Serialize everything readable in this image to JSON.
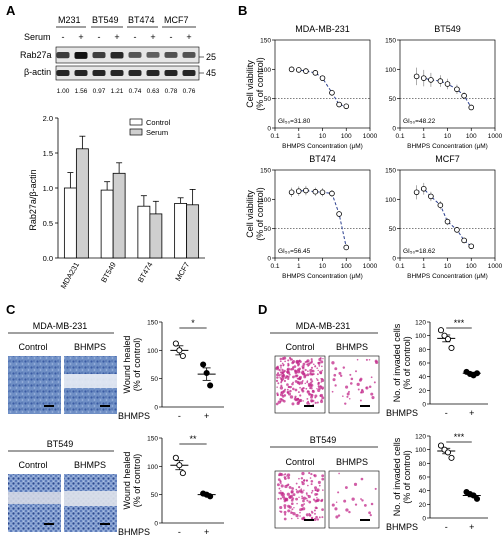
{
  "panels": {
    "A": "A",
    "B": "B",
    "C": "C",
    "D": "D"
  },
  "panelA": {
    "cell_lines": [
      "M231",
      "BT549",
      "BT474",
      "MCF7"
    ],
    "serum_label": "Serum",
    "serum_signs": [
      "-",
      "+",
      "-",
      "+",
      "-",
      "+",
      "-",
      "+"
    ],
    "blot_rows": [
      "Rab27a",
      "β-actin"
    ],
    "kda": [
      "25",
      "45"
    ],
    "ratios": [
      "1.00",
      "1.56",
      "0.97",
      "1.21",
      "0.74",
      "0.63",
      "0.78",
      "0.76"
    ],
    "ylabel": "Rab27a/β-actin",
    "legend": [
      "Control",
      "Serum"
    ]
  },
  "chart_data": [
    {
      "type": "bar",
      "panel": "A",
      "categories": [
        "MDA231",
        "BT549",
        "BT474",
        "MCF7"
      ],
      "series": [
        {
          "name": "Control",
          "values": [
            1.0,
            0.97,
            0.74,
            0.78
          ],
          "errors": [
            0.22,
            0.12,
            0.15,
            0.08
          ]
        },
        {
          "name": "Serum",
          "values": [
            1.56,
            1.21,
            0.63,
            0.76
          ],
          "errors": [
            0.18,
            0.15,
            0.18,
            0.22
          ]
        }
      ],
      "ylabel": "Rab27a/β-actin",
      "ylim": [
        0,
        2.0
      ],
      "yticks": [
        "0.0",
        "0.5",
        "1.0",
        "1.5",
        "2.0"
      ]
    },
    {
      "type": "scatter",
      "panel": "B",
      "title": "MDA-MB-231",
      "annotation": "GI₅₀=31.80",
      "x": [
        0.5,
        1,
        2,
        5,
        10,
        25,
        50,
        100
      ],
      "y": [
        100,
        99,
        97,
        94,
        85,
        60,
        40,
        37
      ],
      "errors": [
        2,
        2,
        2,
        3,
        4,
        5,
        4,
        3
      ],
      "xlabel": "BHMPS Concentration (μM)",
      "ylabel": "Cell viability (% of control)",
      "xlim": [
        0.1,
        1000
      ],
      "ylim": [
        0,
        150
      ],
      "xscale": "log",
      "xticks": [
        "0.1",
        "1",
        "10",
        "100",
        "1000"
      ],
      "yticks": [
        "0",
        "50",
        "100",
        "150"
      ]
    },
    {
      "type": "scatter",
      "panel": "B",
      "title": "BT549",
      "annotation": "GI₅₀=48.22",
      "x": [
        0.5,
        1,
        2,
        5,
        10,
        25,
        50,
        100
      ],
      "y": [
        88,
        85,
        82,
        80,
        75,
        66,
        55,
        35
      ],
      "errors": [
        15,
        14,
        12,
        10,
        9,
        8,
        6,
        4
      ],
      "xlabel": "BHMPS Concentration (μM)",
      "ylabel": "",
      "xlim": [
        0.1,
        1000
      ],
      "ylim": [
        0,
        150
      ],
      "xscale": "log",
      "xticks": [
        "0.1",
        "1",
        "10",
        "100",
        "1000"
      ],
      "yticks": [
        "0",
        "50",
        "100",
        "150"
      ]
    },
    {
      "type": "scatter",
      "panel": "B",
      "title": "BT474",
      "annotation": "GI₅₀=56.45",
      "x": [
        0.5,
        1,
        2,
        5,
        10,
        25,
        50,
        100
      ],
      "y": [
        112,
        114,
        115,
        113,
        112,
        110,
        75,
        18
      ],
      "errors": [
        8,
        8,
        8,
        7,
        7,
        6,
        5,
        3
      ],
      "xlabel": "BHMPS Concentration (μM)",
      "ylabel": "Cell viability (% of control)",
      "xlim": [
        0.1,
        1000
      ],
      "ylim": [
        0,
        150
      ],
      "xscale": "log",
      "xticks": [
        "0.1",
        "1",
        "10",
        "100",
        "1000"
      ],
      "yticks": [
        "0",
        "50",
        "100",
        "150"
      ]
    },
    {
      "type": "scatter",
      "panel": "B",
      "title": "MCF7",
      "annotation": "GI₅₀=18.62",
      "x": [
        0.5,
        1,
        2,
        5,
        10,
        25,
        50,
        100
      ],
      "y": [
        112,
        118,
        105,
        90,
        62,
        48,
        30,
        20
      ],
      "errors": [
        12,
        10,
        8,
        7,
        6,
        5,
        4,
        3
      ],
      "xlabel": "BHMPS Concentration (μM)",
      "ylabel": "",
      "xlim": [
        0.1,
        1000
      ],
      "ylim": [
        0,
        150
      ],
      "xscale": "log",
      "xticks": [
        "0.1",
        "1",
        "10",
        "100",
        "1000"
      ],
      "yticks": [
        "0",
        "50",
        "100",
        "150"
      ]
    },
    {
      "type": "scatter",
      "panel": "C",
      "title": "MDA-MB-231",
      "ylabel": "Wound healed (% of control)",
      "ylim": [
        0,
        150
      ],
      "yticks": [
        "0",
        "50",
        "100",
        "150"
      ],
      "xcategories": [
        "-",
        "+"
      ],
      "xlabel": "BHMPS",
      "significance": "*",
      "groups": [
        {
          "values": [
            112,
            100,
            90
          ],
          "mean": 100,
          "sem": 8
        },
        {
          "values": [
            75,
            60,
            38
          ],
          "mean": 58,
          "sem": 11
        }
      ]
    },
    {
      "type": "scatter",
      "panel": "C",
      "title": "BT549",
      "ylabel": "Wound healed (% of control)",
      "ylim": [
        0,
        150
      ],
      "yticks": [
        "0",
        "50",
        "100",
        "150"
      ],
      "xcategories": [
        "-",
        "+"
      ],
      "xlabel": "BHMPS",
      "significance": "**",
      "groups": [
        {
          "values": [
            115,
            102,
            88
          ],
          "mean": 102,
          "sem": 8
        },
        {
          "values": [
            52,
            50,
            47
          ],
          "mean": 50,
          "sem": 2
        }
      ]
    },
    {
      "type": "scatter",
      "panel": "D",
      "title": "MDA-MB-231",
      "ylabel": "No. of invaded cells (% of control)",
      "ylim": [
        0,
        120
      ],
      "yticks": [
        "0",
        "20",
        "40",
        "60",
        "80",
        "100",
        "120"
      ],
      "xcategories": [
        "-",
        "+"
      ],
      "xlabel": "BHMPS",
      "significance": "***",
      "groups": [
        {
          "values": [
            108,
            100,
            95,
            82
          ],
          "mean": 96,
          "sem": 5
        },
        {
          "values": [
            47,
            44,
            42,
            45
          ],
          "mean": 45,
          "sem": 1.5
        }
      ]
    },
    {
      "type": "scatter",
      "panel": "D",
      "title": "BT549",
      "ylabel": "No. of invaded cells (% of control)",
      "ylim": [
        0,
        120
      ],
      "yticks": [
        "0",
        "20",
        "40",
        "60",
        "80",
        "100",
        "120"
      ],
      "xcategories": [
        "-",
        "+"
      ],
      "xlabel": "BHMPS",
      "significance": "***",
      "groups": [
        {
          "values": [
            106,
            100,
            96,
            88
          ],
          "mean": 98,
          "sem": 4
        },
        {
          "values": [
            38,
            35,
            33,
            28
          ],
          "mean": 33,
          "sem": 2
        }
      ]
    }
  ],
  "panelC": {
    "tops": [
      "MDA-MB-231",
      "BT549"
    ],
    "cols": [
      "Control",
      "BHMPS"
    ]
  },
  "panelD": {
    "tops": [
      "MDA-MB-231",
      "BT549"
    ],
    "cols": [
      "Control",
      "BHMPS"
    ]
  }
}
